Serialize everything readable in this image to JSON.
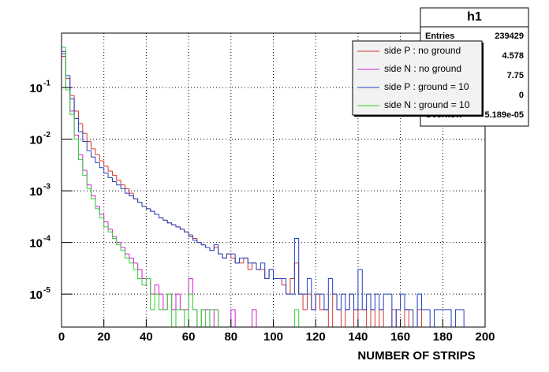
{
  "chart_data": {
    "type": "histogram",
    "xlabel": "NUMBER OF STRIPS",
    "log_y": true,
    "grid": true,
    "legend_position": "upper right",
    "xlim": [
      0,
      200
    ],
    "ylim": [
      2.3e-06,
      1.13
    ],
    "xticks": [
      0,
      20,
      40,
      60,
      80,
      100,
      120,
      140,
      160,
      180,
      200
    ],
    "yticks": [
      {
        "value": 1e-05,
        "label": "10",
        "exponent": "-5"
      },
      {
        "value": 0.0001,
        "label": "10",
        "exponent": "-4"
      },
      {
        "value": 0.001,
        "label": "10",
        "exponent": "-3"
      },
      {
        "value": 0.01,
        "label": "10",
        "exponent": "-2"
      },
      {
        "value": 0.1,
        "label": "10",
        "exponent": "-1"
      }
    ],
    "bins": [
      0,
      2,
      4,
      6,
      8,
      10,
      12,
      14,
      16,
      18,
      20,
      22,
      24,
      26,
      28,
      30,
      32,
      34,
      36,
      38,
      40,
      42,
      44,
      46,
      48,
      50,
      52,
      54,
      56,
      58,
      60,
      62,
      64,
      66,
      68,
      70,
      72,
      74,
      76,
      78,
      80,
      82,
      84,
      86,
      88,
      90,
      92,
      94,
      96,
      98,
      100,
      102,
      104,
      106,
      108,
      110,
      112,
      114,
      116,
      118,
      120,
      122,
      124,
      126,
      128,
      130,
      132,
      134,
      136,
      138,
      140,
      142,
      144,
      146,
      148,
      150,
      152,
      154,
      156,
      158,
      160,
      162,
      164,
      166,
      168,
      170,
      172,
      174,
      176,
      178,
      180,
      182,
      184,
      186,
      188,
      190,
      192,
      194,
      196,
      198,
      200
    ],
    "stats": {
      "title": "h1",
      "rows": [
        {
          "label": "Entries",
          "value": "239429"
        },
        {
          "value": "4.578"
        },
        {
          "value": "7.75"
        },
        {
          "value": "0"
        },
        {
          "label": "Overflow",
          "value": "5.189e-05"
        }
      ]
    },
    "series": [
      {
        "name": "side P : no ground",
        "color": "#d03a2f",
        "values": [
          0.4,
          0.15,
          0.07,
          0.035,
          0.02,
          0.013,
          0.009,
          0.0065,
          0.005,
          0.0038,
          0.003,
          0.0024,
          0.002,
          0.0016,
          0.0013,
          0.0011,
          0.0009,
          0.0007,
          0.0006,
          0.0005,
          0.00045,
          0.0004,
          0.00035,
          0.0003,
          0.00027,
          0.00024,
          0.00022,
          0.0002,
          0.00018,
          0.00016,
          0.00014,
          0.00012,
          0.0001,
          9e-05,
          8e-05,
          7e-05,
          8e-05,
          6e-05,
          5e-05,
          6e-05,
          5e-05,
          4e-05,
          4e-05,
          5e-05,
          3e-05,
          4e-05,
          3e-05,
          3e-05,
          2e-05,
          3e-05,
          2e-05,
          2e-05,
          1.5e-05,
          1e-05,
          2e-05,
          4e-05,
          1e-05,
          5e-06,
          1e-05,
          5e-06,
          1e-05,
          5e-06,
          5e-06,
          0,
          1e-05,
          5e-06,
          0,
          5e-06,
          1e-05,
          0,
          5e-06,
          5e-06,
          0,
          5e-06,
          0,
          5e-06,
          0,
          0,
          5e-06,
          0,
          0,
          5e-06,
          0,
          0,
          5e-06,
          0,
          0,
          0,
          0,
          0,
          0,
          0,
          0,
          0,
          0,
          0,
          0,
          0,
          0,
          0
        ]
      },
      {
        "name": "side N : no ground",
        "color": "#d020d0",
        "values": [
          0.45,
          0.1,
          0.035,
          0.012,
          0.005,
          0.0025,
          0.0013,
          0.0008,
          0.0005,
          0.00035,
          0.00025,
          0.00018,
          0.00013,
          0.0001,
          8e-05,
          6e-05,
          5e-05,
          4e-05,
          3e-05,
          2e-05,
          2e-05,
          1e-05,
          1.5e-05,
          1e-05,
          5e-06,
          1e-05,
          5e-06,
          1e-05,
          5e-06,
          5e-06,
          2e-05,
          5e-06,
          0,
          5e-06,
          5e-06,
          0,
          5e-06,
          0,
          0,
          0,
          5e-06,
          0,
          0,
          0,
          0,
          5e-06,
          0,
          0,
          0,
          0,
          0,
          0,
          0,
          0,
          0,
          0,
          0,
          0,
          0,
          0,
          0,
          0,
          0,
          0,
          0,
          0,
          0,
          0,
          0,
          0,
          0,
          0,
          0,
          0,
          0,
          0,
          0,
          0,
          0,
          0,
          0,
          0,
          0,
          0,
          0,
          0,
          0,
          0,
          0,
          0,
          0,
          0,
          0,
          0,
          0,
          0,
          0,
          0,
          0,
          0
        ]
      },
      {
        "name": "side P : ground = 10",
        "color": "#2040c0",
        "values": [
          0.5,
          0.17,
          0.06,
          0.025,
          0.014,
          0.009,
          0.006,
          0.0045,
          0.0035,
          0.0028,
          0.0022,
          0.0018,
          0.0015,
          0.0013,
          0.0011,
          0.0009,
          0.0008,
          0.0007,
          0.0006,
          0.0005,
          0.00045,
          0.0004,
          0.00035,
          0.0003,
          0.00027,
          0.00024,
          0.00022,
          0.0002,
          0.00018,
          0.00016,
          0.00013,
          0.00011,
          0.0001,
          9e-05,
          8e-05,
          7e-05,
          9e-05,
          6e-05,
          5e-05,
          6e-05,
          6e-05,
          4e-05,
          5e-05,
          5e-05,
          4e-05,
          4e-05,
          3e-05,
          4e-05,
          2e-05,
          3e-05,
          2e-05,
          2e-05,
          2e-05,
          1e-05,
          1e-05,
          0.00012,
          1e-05,
          1e-05,
          2e-05,
          5e-06,
          1e-05,
          1e-05,
          5e-06,
          2e-05,
          1e-05,
          5e-06,
          1e-05,
          5e-06,
          1e-05,
          5e-06,
          3e-05,
          5e-06,
          1e-05,
          5e-06,
          1e-05,
          5e-06,
          1e-05,
          1e-05,
          0,
          5e-06,
          1e-05,
          5e-06,
          5e-06,
          0,
          1e-05,
          5e-06,
          5e-06,
          0,
          5e-06,
          5e-06,
          5e-06,
          5e-06,
          0,
          5e-06,
          5e-06,
          0,
          0,
          0,
          0,
          0
        ]
      },
      {
        "name": "side N : ground = 10",
        "color": "#30d030",
        "values": [
          0.6,
          0.09,
          0.03,
          0.01,
          0.004,
          0.002,
          0.0011,
          0.0007,
          0.00045,
          0.0003,
          0.0002,
          0.00016,
          0.00012,
          9e-05,
          7e-05,
          5e-05,
          4e-05,
          3e-05,
          2e-05,
          1.5e-05,
          2e-05,
          5e-06,
          1e-05,
          5e-06,
          5e-06,
          1e-05,
          0,
          5e-06,
          5e-06,
          0,
          1e-05,
          5e-06,
          0,
          5e-06,
          0,
          5e-06,
          5e-06,
          0,
          0,
          0,
          0,
          0,
          0,
          0,
          0,
          0,
          0,
          0,
          0,
          0,
          0,
          0,
          0,
          0,
          0,
          5e-06,
          0,
          0,
          0,
          0,
          0,
          0,
          0,
          0,
          0,
          0,
          0,
          0,
          0,
          0,
          0,
          0,
          0,
          0,
          0,
          0,
          0,
          0,
          0,
          0,
          0,
          0,
          0,
          0,
          0,
          0,
          0,
          0,
          0,
          0,
          0,
          0,
          0,
          0,
          0,
          0,
          0,
          0,
          0,
          0
        ]
      }
    ]
  }
}
